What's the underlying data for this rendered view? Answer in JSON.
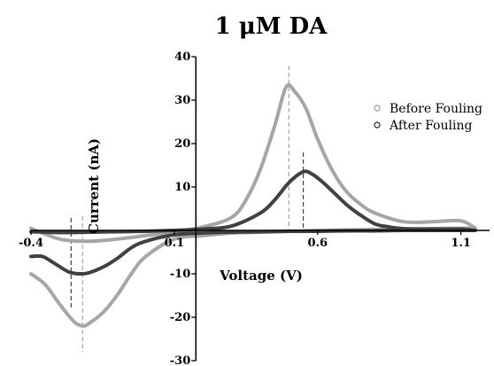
{
  "chart_data": {
    "type": "line",
    "title": "1 μM DA",
    "xlabel": "Voltage (V)",
    "ylabel": "Current (nA)",
    "xlim": [
      -0.4,
      1.2
    ],
    "ylim": [
      -30,
      40
    ],
    "x_ticks": [
      -0.4,
      0.1,
      0.6,
      1.1
    ],
    "x_tick_labels": [
      "-0.4",
      "0.1",
      "0.6",
      "1.1"
    ],
    "y_ticks": [
      -30,
      -20,
      -10,
      10,
      20,
      30,
      40
    ],
    "y_tick_labels": [
      "-30",
      "-20",
      "-10",
      "10",
      "20",
      "30",
      "40"
    ],
    "grid": false,
    "legend_position": "top-right",
    "series": [
      {
        "name": "Before Fouling",
        "color": "#a6a6a6",
        "marker": "open-circle",
        "forward": [
          [
            -0.4,
            0.5
          ],
          [
            -0.3,
            -2
          ],
          [
            -0.2,
            -2.5
          ],
          [
            -0.1,
            -2
          ],
          [
            0.0,
            -1.2
          ],
          [
            0.1,
            -0.3
          ],
          [
            0.2,
            0.8
          ],
          [
            0.3,
            3
          ],
          [
            0.35,
            7
          ],
          [
            0.4,
            14
          ],
          [
            0.45,
            24
          ],
          [
            0.49,
            33
          ],
          [
            0.52,
            32
          ],
          [
            0.56,
            28
          ],
          [
            0.6,
            21
          ],
          [
            0.65,
            14
          ],
          [
            0.7,
            9
          ],
          [
            0.75,
            6
          ],
          [
            0.8,
            4
          ],
          [
            0.9,
            2
          ],
          [
            1.0,
            2
          ],
          [
            1.1,
            2.2
          ],
          [
            1.15,
            0.5
          ]
        ],
        "reverse": [
          [
            1.15,
            0.5
          ],
          [
            1.1,
            0.5
          ],
          [
            1.0,
            0.4
          ],
          [
            0.9,
            0.3
          ],
          [
            0.8,
            0.2
          ],
          [
            0.7,
            0.1
          ],
          [
            0.6,
            0
          ],
          [
            0.5,
            -0.2
          ],
          [
            0.4,
            -0.4
          ],
          [
            0.3,
            -0.6
          ],
          [
            0.2,
            -1.2
          ],
          [
            0.1,
            -2
          ],
          [
            0.0,
            -6
          ],
          [
            -0.05,
            -10
          ],
          [
            -0.1,
            -15
          ],
          [
            -0.15,
            -19
          ],
          [
            -0.2,
            -21.5
          ],
          [
            -0.22,
            -22
          ],
          [
            -0.25,
            -21
          ],
          [
            -0.3,
            -17
          ],
          [
            -0.35,
            -12.5
          ],
          [
            -0.4,
            -10
          ]
        ]
      },
      {
        "name": "After Fouling",
        "color": "#404040",
        "marker": "open-circle",
        "forward": [
          [
            -0.4,
            -0.3
          ],
          [
            -0.3,
            -0.5
          ],
          [
            -0.2,
            -0.4
          ],
          [
            -0.1,
            -0.3
          ],
          [
            0.0,
            -0.2
          ],
          [
            0.1,
            0
          ],
          [
            0.2,
            0.3
          ],
          [
            0.3,
            1
          ],
          [
            0.4,
            4
          ],
          [
            0.45,
            7
          ],
          [
            0.5,
            11
          ],
          [
            0.55,
            13.5
          ],
          [
            0.58,
            13
          ],
          [
            0.62,
            11
          ],
          [
            0.7,
            6
          ],
          [
            0.75,
            3.5
          ],
          [
            0.8,
            1.5
          ],
          [
            0.85,
            0.8
          ],
          [
            0.9,
            0.4
          ],
          [
            1.0,
            0.3
          ],
          [
            1.1,
            0.3
          ],
          [
            1.15,
            0
          ]
        ],
        "reverse": [
          [
            1.15,
            0
          ],
          [
            1.0,
            0
          ],
          [
            0.9,
            0
          ],
          [
            0.8,
            -0.1
          ],
          [
            0.7,
            -0.1
          ],
          [
            0.6,
            -0.2
          ],
          [
            0.5,
            -0.2
          ],
          [
            0.4,
            -0.3
          ],
          [
            0.3,
            -0.4
          ],
          [
            0.2,
            -0.6
          ],
          [
            0.1,
            -1
          ],
          [
            0.0,
            -2.5
          ],
          [
            -0.05,
            -4
          ],
          [
            -0.1,
            -6.5
          ],
          [
            -0.15,
            -8.5
          ],
          [
            -0.2,
            -9.8
          ],
          [
            -0.23,
            -10
          ],
          [
            -0.27,
            -9.5
          ],
          [
            -0.32,
            -7.5
          ],
          [
            -0.36,
            -6
          ],
          [
            -0.4,
            -6
          ]
        ]
      }
    ],
    "reference_lines": [
      {
        "x": 0.5,
        "color": "#a6a6a6",
        "style": "dashed"
      },
      {
        "x": 0.55,
        "color": "#404040",
        "style": "dashed"
      },
      {
        "x": -0.22,
        "color": "#a6a6a6",
        "style": "dashed"
      },
      {
        "x": -0.26,
        "color": "#404040",
        "style": "dashed"
      }
    ]
  }
}
